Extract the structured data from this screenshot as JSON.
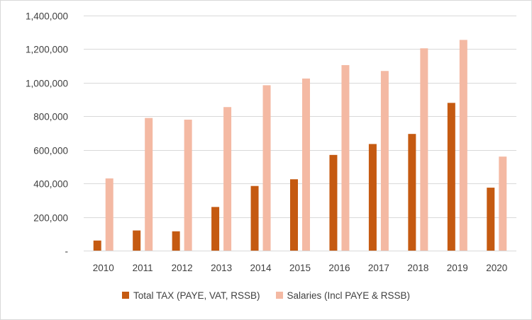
{
  "chart_data": {
    "type": "bar",
    "title": "",
    "xlabel": "",
    "ylabel": "",
    "ylim": [
      0,
      1400000
    ],
    "yticks": [
      0,
      200000,
      400000,
      600000,
      800000,
      1000000,
      1200000,
      1400000
    ],
    "ytick_labels": [
      "-",
      "200,000",
      "400,000",
      "600,000",
      "800,000",
      "1,000,000",
      "1,200,000",
      "1,400,000"
    ],
    "grid": true,
    "legend_position": "bottom",
    "categories": [
      "2010",
      "2011",
      "2012",
      "2013",
      "2014",
      "2015",
      "2016",
      "2017",
      "2018",
      "2019",
      "2020"
    ],
    "series": [
      {
        "name": "Total TAX (PAYE, VAT, RSSB)",
        "color": "#c55a11",
        "values": [
          60000,
          120000,
          115000,
          260000,
          385000,
          425000,
          570000,
          635000,
          695000,
          880000,
          375000
        ]
      },
      {
        "name": "Salaries (Incl PAYE & RSSB)",
        "color": "#f4b9a3",
        "values": [
          430000,
          790000,
          780000,
          855000,
          985000,
          1025000,
          1105000,
          1070000,
          1205000,
          1255000,
          560000
        ]
      }
    ]
  }
}
